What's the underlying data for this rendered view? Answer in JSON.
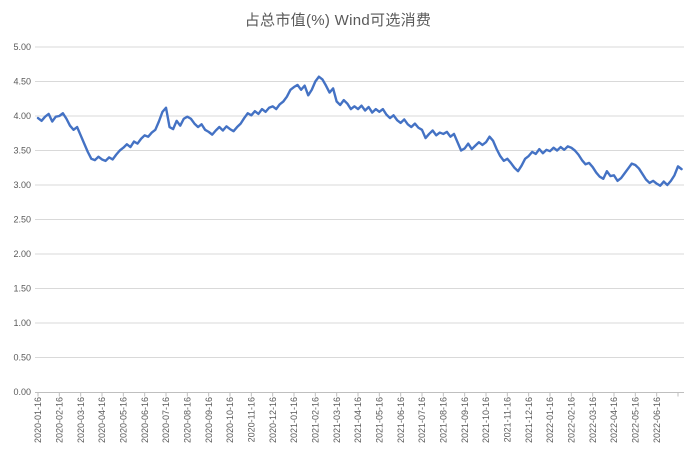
{
  "title": "占总市值(%) Wind可选消费",
  "colors": {
    "line": "#4472C4",
    "grid": "#D9D9D9",
    "axis": "#BFBFBF",
    "text": "#595959",
    "background": "#FFFFFF"
  },
  "chart_data": {
    "type": "line",
    "title": "占总市值(%) Wind可选消费",
    "series_name": "Wind可选消费 占总市值(%)",
    "legend": "none",
    "grid": "horizontal",
    "ylim": [
      0,
      5
    ],
    "y_tick_values": [
      0,
      0.5,
      1,
      1.5,
      2,
      2.5,
      3,
      3.5,
      4,
      4.5,
      5
    ],
    "y_tick_labels": [
      "0.00",
      "0.50",
      "1.00",
      "1.50",
      "2.00",
      "2.50",
      "3.00",
      "3.50",
      "4.00",
      "4.50",
      "5.00"
    ],
    "x_tick_labels": [
      "2020-01-16",
      "2020-02-16",
      "2020-03-16",
      "2020-04-16",
      "2020-05-16",
      "2020-06-16",
      "2020-07-16",
      "2020-08-16",
      "2020-09-16",
      "2020-10-16",
      "2020-11-16",
      "2020-12-16",
      "2021-01-16",
      "2021-02-16",
      "2021-03-16",
      "2021-04-16",
      "2021-05-16",
      "2021-06-16",
      "2021-07-16",
      "2021-08-16",
      "2021-09-16",
      "2021-10-16",
      "2021-11-16",
      "2021-12-16",
      "2022-01-16",
      "2022-02-16",
      "2022-03-16",
      "2022-04-16",
      "2022-05-16",
      "2022-06-16"
    ],
    "points_per_month": 6,
    "values": [
      3.97,
      3.93,
      3.99,
      4.03,
      3.92,
      3.99,
      4.0,
      4.04,
      3.96,
      3.86,
      3.8,
      3.84,
      3.72,
      3.6,
      3.48,
      3.38,
      3.36,
      3.41,
      3.37,
      3.35,
      3.4,
      3.37,
      3.44,
      3.5,
      3.54,
      3.59,
      3.55,
      3.63,
      3.6,
      3.67,
      3.72,
      3.7,
      3.76,
      3.8,
      3.92,
      4.06,
      4.12,
      3.84,
      3.81,
      3.93,
      3.86,
      3.96,
      3.99,
      3.96,
      3.89,
      3.84,
      3.88,
      3.8,
      3.77,
      3.73,
      3.79,
      3.84,
      3.79,
      3.85,
      3.81,
      3.78,
      3.84,
      3.89,
      3.97,
      4.04,
      4.01,
      4.07,
      4.03,
      4.1,
      4.06,
      4.12,
      4.14,
      4.1,
      4.17,
      4.21,
      4.28,
      4.38,
      4.42,
      4.45,
      4.38,
      4.44,
      4.3,
      4.38,
      4.5,
      4.57,
      4.53,
      4.44,
      4.34,
      4.4,
      4.21,
      4.16,
      4.23,
      4.18,
      4.1,
      4.14,
      4.1,
      4.15,
      4.08,
      4.13,
      4.05,
      4.1,
      4.06,
      4.1,
      4.02,
      3.97,
      4.01,
      3.94,
      3.9,
      3.95,
      3.88,
      3.84,
      3.89,
      3.83,
      3.8,
      3.68,
      3.74,
      3.79,
      3.72,
      3.76,
      3.74,
      3.77,
      3.7,
      3.74,
      3.62,
      3.5,
      3.53,
      3.6,
      3.52,
      3.57,
      3.62,
      3.58,
      3.62,
      3.7,
      3.64,
      3.52,
      3.42,
      3.35,
      3.38,
      3.32,
      3.25,
      3.2,
      3.28,
      3.38,
      3.42,
      3.48,
      3.45,
      3.52,
      3.46,
      3.51,
      3.49,
      3.54,
      3.5,
      3.55,
      3.51,
      3.56,
      3.54,
      3.5,
      3.44,
      3.36,
      3.3,
      3.32,
      3.26,
      3.18,
      3.12,
      3.09,
      3.2,
      3.13,
      3.14,
      3.06,
      3.1,
      3.17,
      3.24,
      3.31,
      3.29,
      3.24,
      3.16,
      3.08,
      3.03,
      3.06,
      3.02,
      2.99,
      3.05,
      3.0,
      3.06,
      3.14,
      3.27,
      3.23
    ]
  }
}
